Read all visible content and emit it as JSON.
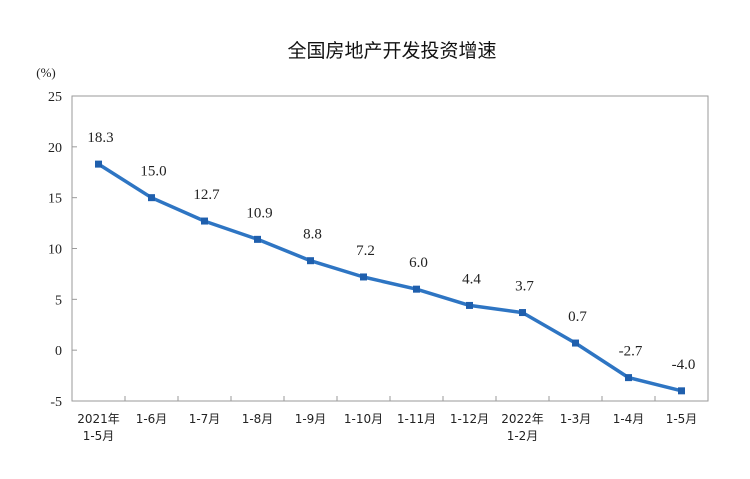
{
  "chart_data": {
    "type": "line",
    "title": "全国房地产开发投资增速",
    "y_unit": "(%)",
    "ylim": [
      -5,
      25
    ],
    "yticks": [
      "25",
      "20",
      "15",
      "10",
      "5",
      "0",
      "-5"
    ],
    "categories": [
      [
        "2021年",
        "1-5月"
      ],
      [
        "1-6月"
      ],
      [
        "1-7月"
      ],
      [
        "1-8月"
      ],
      [
        "1-9月"
      ],
      [
        "1-10月"
      ],
      [
        "1-11月"
      ],
      [
        "1-12月"
      ],
      [
        "2022年",
        "1-2月"
      ],
      [
        "1-3月"
      ],
      [
        "1-4月"
      ],
      [
        "1-5月"
      ]
    ],
    "values": [
      18.3,
      15.0,
      12.7,
      10.9,
      8.8,
      7.2,
      6.0,
      4.4,
      3.7,
      0.7,
      -2.7,
      -4.0
    ],
    "value_labels": [
      "18.3",
      "15.0",
      "12.7",
      "10.9",
      "8.8",
      "7.2",
      "6.0",
      "4.4",
      "3.7",
      "0.7",
      "-2.7",
      "-4.0"
    ],
    "grid": false,
    "line_color": "#2e75c3",
    "marker_color": "#1f5fad"
  }
}
